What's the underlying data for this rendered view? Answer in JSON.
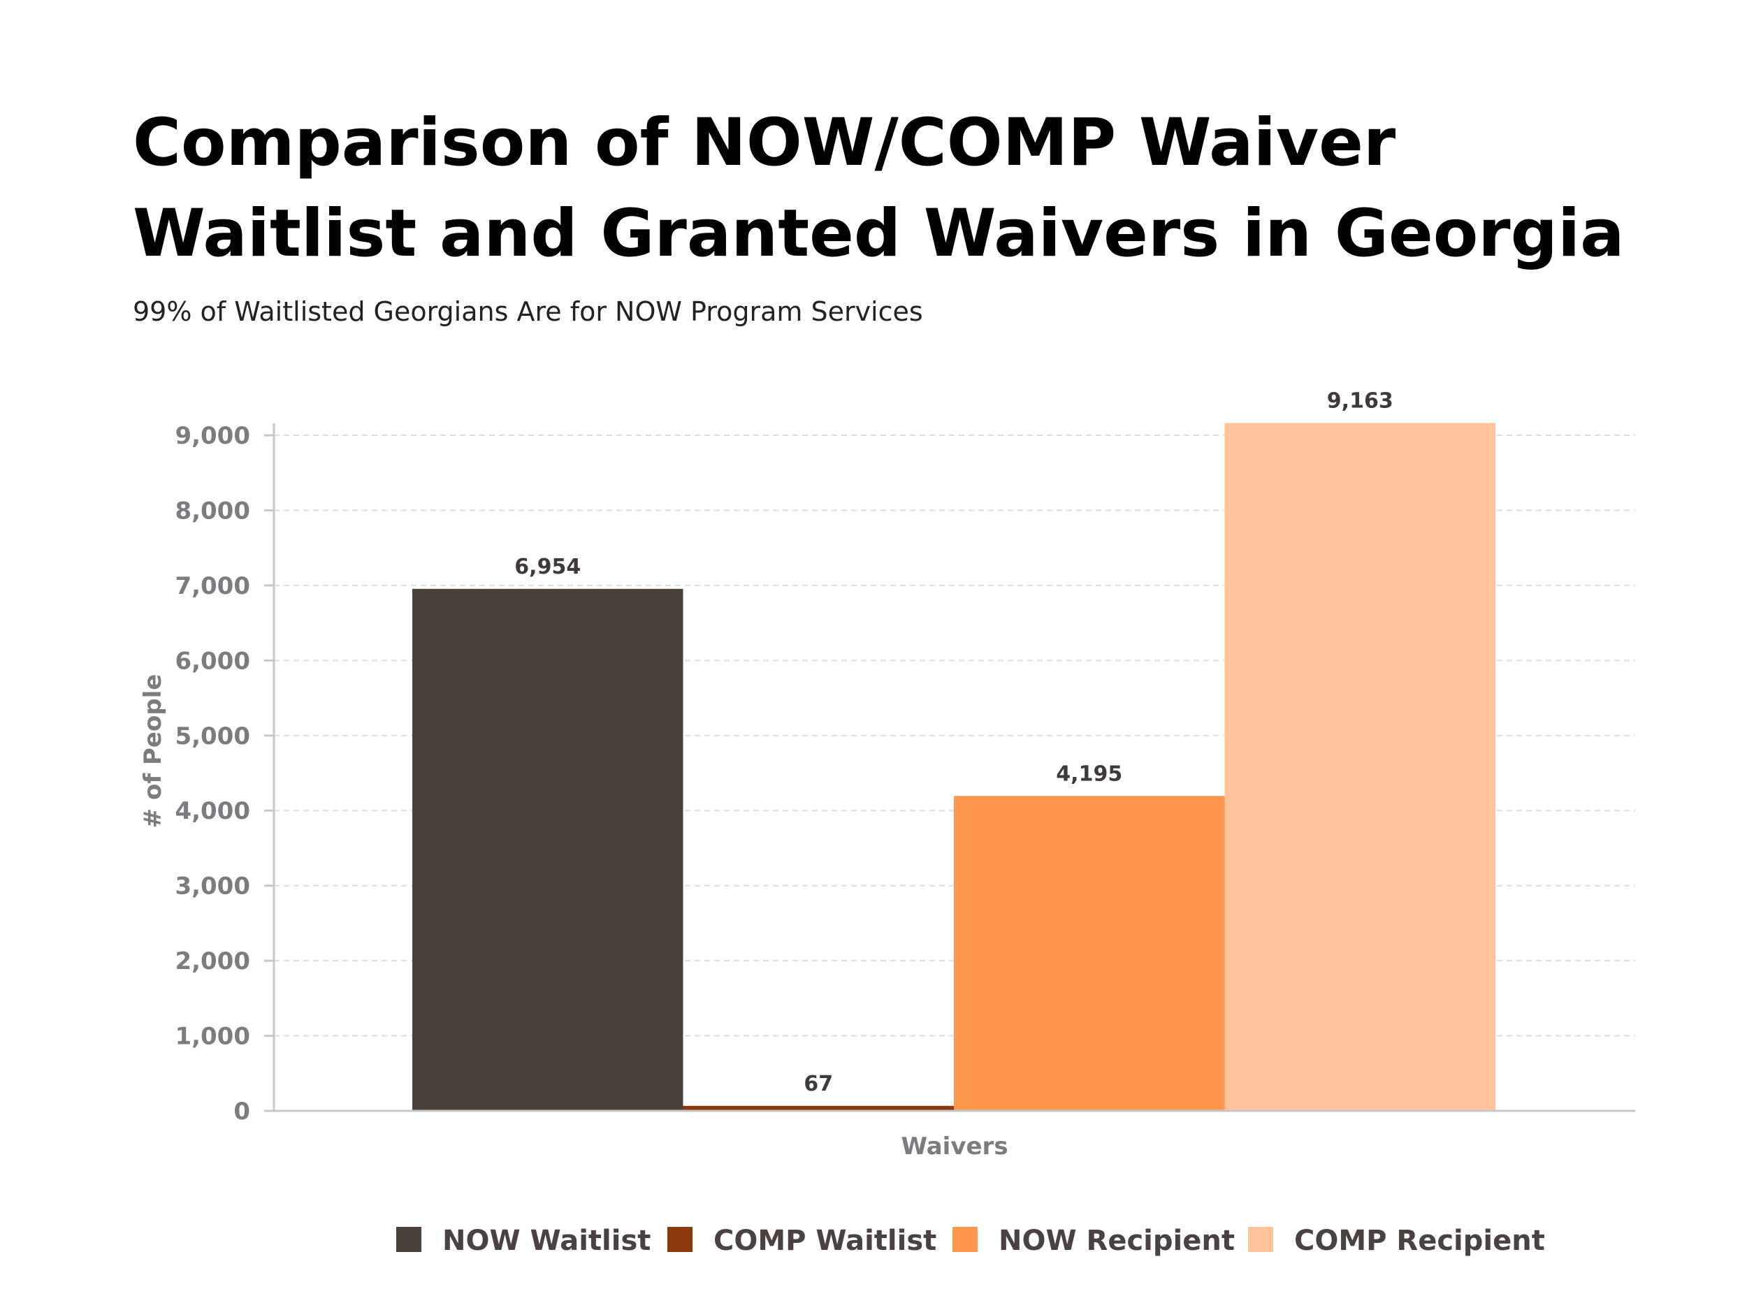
{
  "title": "Comparison of NOW/COMP Waiver Waitlist and Granted Waivers in Georgia",
  "subtitle": "99% of Waitlisted Georgians Are for NOW Program Services",
  "chart_data": {
    "type": "bar",
    "categories": [
      "Waivers"
    ],
    "series": [
      {
        "name": "NOW Waitlist",
        "values": [
          6954
        ],
        "label": "6,954",
        "color": "#4a413c"
      },
      {
        "name": "COMP Waitlist",
        "values": [
          67
        ],
        "label": "67",
        "color": "#8b3a0e"
      },
      {
        "name": "NOW Recipient",
        "values": [
          4195
        ],
        "label": "4,195",
        "color": "#ff974e"
      },
      {
        "name": "COMP Recipient",
        "values": [
          9163
        ],
        "label": "9,163",
        "color": "#ffc29a"
      }
    ],
    "xlabel": "Waivers",
    "ylabel": "# of People",
    "ylim": [
      0,
      9000
    ],
    "yticks": [
      {
        "value": 0,
        "label": "0"
      },
      {
        "value": 1000,
        "label": "1,000"
      },
      {
        "value": 2000,
        "label": "2,000"
      },
      {
        "value": 3000,
        "label": "3,000"
      },
      {
        "value": 4000,
        "label": "4,000"
      },
      {
        "value": 5000,
        "label": "5,000"
      },
      {
        "value": 6000,
        "label": "6,000"
      },
      {
        "value": 7000,
        "label": "7,000"
      },
      {
        "value": 8000,
        "label": "8,000"
      },
      {
        "value": 9000,
        "label": "9,000"
      }
    ],
    "grid": true,
    "legend_position": "bottom"
  }
}
